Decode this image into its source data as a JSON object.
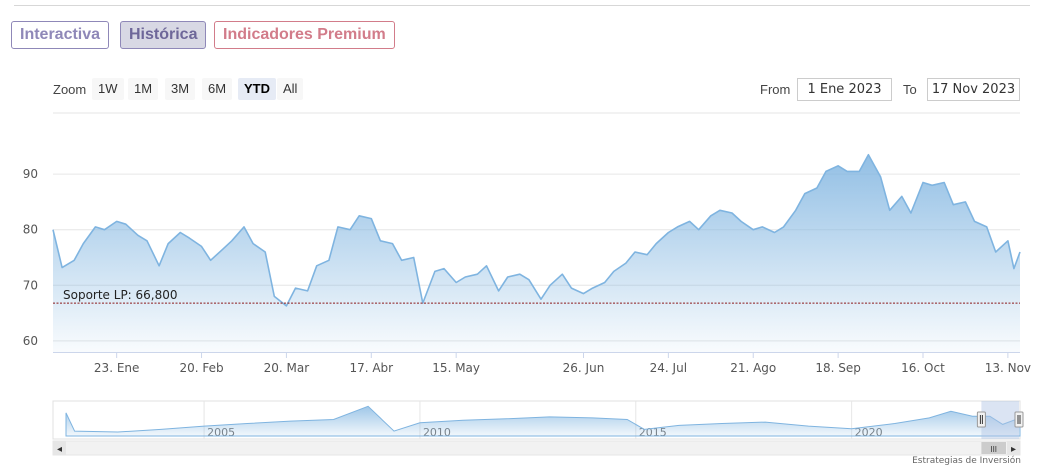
{
  "tabs": [
    {
      "label": "Interactiva"
    },
    {
      "label": "Histórica",
      "active": true
    },
    {
      "label": "Indicadores Premium"
    }
  ],
  "toolbar": {
    "zoom_label": "Zoom",
    "zoom_buttons": [
      "1W",
      "1M",
      "3M",
      "6M",
      "YTD",
      "All"
    ],
    "active_zoom": "YTD",
    "from_label": "From",
    "from_value": "1 Ene 2023",
    "to_label": "To",
    "to_value": "17 Nov 2023"
  },
  "colors": {
    "line": "#7fb4e0",
    "support": "#8b1a1a",
    "tab_purple": "#8f88b8",
    "tab_red": "#d27c8a"
  },
  "chart_data": {
    "type": "area",
    "x_start": "2023-01-02",
    "x_end": "2023-11-17",
    "ylim": [
      58,
      101
    ],
    "yticks": [
      60,
      70,
      80,
      90
    ],
    "ytick_labels": [
      "60",
      "70",
      "80",
      "90"
    ],
    "x_ticks": [
      {
        "date": "2023-01-23",
        "label": "23. Ene"
      },
      {
        "date": "2023-02-20",
        "label": "20. Feb"
      },
      {
        "date": "2023-03-20",
        "label": "20. Mar"
      },
      {
        "date": "2023-04-17",
        "label": "17. Abr"
      },
      {
        "date": "2023-05-15",
        "label": "15. May"
      },
      {
        "date": "2023-06-26",
        "label": "26. Jun"
      },
      {
        "date": "2023-07-24",
        "label": "24. Jul"
      },
      {
        "date": "2023-08-21",
        "label": "21. Ago"
      },
      {
        "date": "2023-09-18",
        "label": "18. Sep"
      },
      {
        "date": "2023-10-16",
        "label": "16. Oct"
      },
      {
        "date": "2023-11-13",
        "label": "13. Nov"
      }
    ],
    "support_line": {
      "value": 66.8,
      "label": "Soporte LP: 66,800"
    },
    "series": [
      {
        "points": [
          [
            "2023-01-02",
            80.0
          ],
          [
            "2023-01-05",
            73.2
          ],
          [
            "2023-01-09",
            74.5
          ],
          [
            "2023-01-12",
            77.5
          ],
          [
            "2023-01-16",
            80.5
          ],
          [
            "2023-01-19",
            80.0
          ],
          [
            "2023-01-23",
            81.5
          ],
          [
            "2023-01-26",
            81.0
          ],
          [
            "2023-01-30",
            79.0
          ],
          [
            "2023-02-02",
            78.0
          ],
          [
            "2023-02-06",
            73.5
          ],
          [
            "2023-02-09",
            77.5
          ],
          [
            "2023-02-13",
            79.5
          ],
          [
            "2023-02-16",
            78.5
          ],
          [
            "2023-02-20",
            77.0
          ],
          [
            "2023-02-23",
            74.5
          ],
          [
            "2023-02-27",
            76.5
          ],
          [
            "2023-03-02",
            78.0
          ],
          [
            "2023-03-06",
            80.5
          ],
          [
            "2023-03-09",
            77.5
          ],
          [
            "2023-03-13",
            76.0
          ],
          [
            "2023-03-16",
            68.0
          ],
          [
            "2023-03-20",
            66.3
          ],
          [
            "2023-03-23",
            69.5
          ],
          [
            "2023-03-27",
            69.0
          ],
          [
            "2023-03-30",
            73.5
          ],
          [
            "2023-04-03",
            74.5
          ],
          [
            "2023-04-06",
            80.5
          ],
          [
            "2023-04-10",
            80.0
          ],
          [
            "2023-04-13",
            82.5
          ],
          [
            "2023-04-17",
            82.0
          ],
          [
            "2023-04-20",
            78.0
          ],
          [
            "2023-04-24",
            77.5
          ],
          [
            "2023-04-27",
            74.5
          ],
          [
            "2023-05-01",
            75.0
          ],
          [
            "2023-05-04",
            66.8
          ],
          [
            "2023-05-08",
            72.5
          ],
          [
            "2023-05-11",
            73.0
          ],
          [
            "2023-05-15",
            70.5
          ],
          [
            "2023-05-18",
            71.5
          ],
          [
            "2023-05-22",
            72.0
          ],
          [
            "2023-05-25",
            73.5
          ],
          [
            "2023-05-29",
            69.0
          ],
          [
            "2023-06-01",
            71.5
          ],
          [
            "2023-06-05",
            72.0
          ],
          [
            "2023-06-08",
            71.0
          ],
          [
            "2023-06-12",
            67.5
          ],
          [
            "2023-06-15",
            70.0
          ],
          [
            "2023-06-19",
            72.0
          ],
          [
            "2023-06-22",
            69.5
          ],
          [
            "2023-06-26",
            68.5
          ],
          [
            "2023-06-29",
            69.5
          ],
          [
            "2023-07-03",
            70.5
          ],
          [
            "2023-07-06",
            72.5
          ],
          [
            "2023-07-10",
            74.0
          ],
          [
            "2023-07-13",
            76.0
          ],
          [
            "2023-07-17",
            75.5
          ],
          [
            "2023-07-20",
            77.5
          ],
          [
            "2023-07-24",
            79.5
          ],
          [
            "2023-07-27",
            80.5
          ],
          [
            "2023-07-31",
            81.5
          ],
          [
            "2023-08-03",
            80.0
          ],
          [
            "2023-08-07",
            82.5
          ],
          [
            "2023-08-10",
            83.5
          ],
          [
            "2023-08-14",
            83.0
          ],
          [
            "2023-08-17",
            81.5
          ],
          [
            "2023-08-21",
            80.0
          ],
          [
            "2023-08-24",
            80.5
          ],
          [
            "2023-08-28",
            79.5
          ],
          [
            "2023-08-31",
            80.5
          ],
          [
            "2023-09-04",
            83.5
          ],
          [
            "2023-09-07",
            86.5
          ],
          [
            "2023-09-11",
            87.5
          ],
          [
            "2023-09-14",
            90.5
          ],
          [
            "2023-09-18",
            91.5
          ],
          [
            "2023-09-21",
            90.5
          ],
          [
            "2023-09-25",
            90.5
          ],
          [
            "2023-09-28",
            93.5
          ],
          [
            "2023-10-02",
            89.5
          ],
          [
            "2023-10-05",
            83.5
          ],
          [
            "2023-10-09",
            86.0
          ],
          [
            "2023-10-12",
            83.0
          ],
          [
            "2023-10-16",
            88.5
          ],
          [
            "2023-10-19",
            88.0
          ],
          [
            "2023-10-23",
            88.5
          ],
          [
            "2023-10-26",
            84.5
          ],
          [
            "2023-10-30",
            85.0
          ],
          [
            "2023-11-02",
            81.5
          ],
          [
            "2023-11-06",
            80.5
          ],
          [
            "2023-11-09",
            76.0
          ],
          [
            "2023-11-13",
            78.0
          ],
          [
            "2023-11-15",
            73.0
          ],
          [
            "2023-11-17",
            76.0
          ]
        ]
      }
    ],
    "navigator": {
      "x_start_year": 2001.5,
      "x_end_year": 2023.9,
      "year_ticks": [
        2005,
        2010,
        2015,
        2020
      ],
      "year_labels": [
        "2005",
        "2010",
        "2015",
        "2020"
      ],
      "selected_range": [
        "2023-01-02",
        "2023-11-17"
      ],
      "points": [
        [
          2001.8,
          0.7
        ],
        [
          2002.0,
          0.15
        ],
        [
          2003.0,
          0.12
        ],
        [
          2004.0,
          0.2
        ],
        [
          2005.0,
          0.3
        ],
        [
          2006.0,
          0.38
        ],
        [
          2007.0,
          0.45
        ],
        [
          2008.0,
          0.5
        ],
        [
          2008.8,
          0.9
        ],
        [
          2009.4,
          0.15
        ],
        [
          2010.0,
          0.4
        ],
        [
          2011.0,
          0.48
        ],
        [
          2012.0,
          0.52
        ],
        [
          2013.0,
          0.58
        ],
        [
          2014.0,
          0.55
        ],
        [
          2014.8,
          0.5
        ],
        [
          2015.2,
          0.2
        ],
        [
          2016.0,
          0.32
        ],
        [
          2017.0,
          0.38
        ],
        [
          2018.0,
          0.42
        ],
        [
          2019.0,
          0.3
        ],
        [
          2020.0,
          0.22
        ],
        [
          2021.0,
          0.38
        ],
        [
          2021.8,
          0.55
        ],
        [
          2022.3,
          0.75
        ],
        [
          2022.8,
          0.6
        ],
        [
          2023.2,
          0.6
        ],
        [
          2023.5,
          0.35
        ],
        [
          2023.9,
          0.55
        ]
      ]
    }
  },
  "scrollbar": {
    "left_arrow": "◂",
    "right_arrow": "▸",
    "grip": "III"
  },
  "watermark": "Estrategias de Inversión"
}
